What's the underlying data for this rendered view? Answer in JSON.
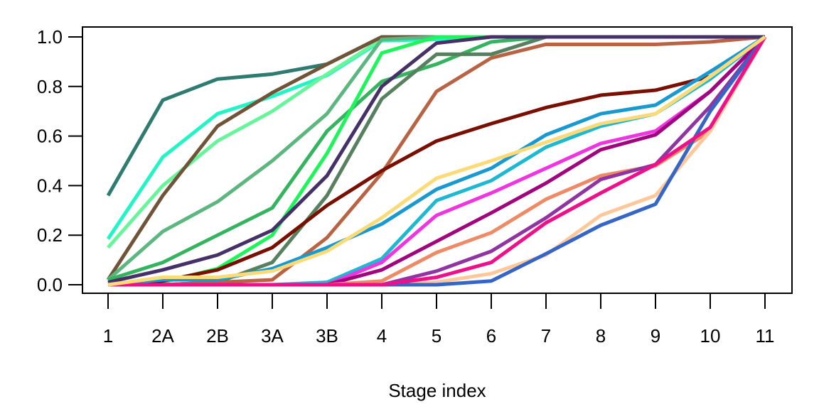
{
  "chart_data": {
    "type": "line",
    "title": "",
    "xlabel": "Stage index",
    "ylabel": "",
    "categories": [
      "1",
      "2A",
      "2B",
      "3A",
      "3B",
      "4",
      "5",
      "6",
      "7",
      "8",
      "9",
      "10",
      "11"
    ],
    "ylim": [
      0,
      1
    ],
    "yticks": [
      "0.0",
      "0.2",
      "0.4",
      "0.6",
      "0.8",
      "1.0"
    ],
    "grid": false,
    "series": [
      {
        "color": "#2e7b70",
        "values": [
          0.36,
          0.745,
          0.83,
          0.85,
          0.89,
          1,
          1,
          1,
          1,
          1,
          1,
          1,
          1
        ]
      },
      {
        "color": "#22f5c5",
        "values": [
          0.185,
          0.515,
          0.69,
          0.76,
          0.845,
          0.985,
          0.99,
          1,
          1,
          1,
          1,
          1,
          1
        ]
      },
      {
        "color": "#66f59a",
        "values": [
          0.15,
          0.4,
          0.58,
          0.7,
          0.85,
          0.99,
          1,
          1,
          1,
          1,
          1,
          1,
          1
        ]
      },
      {
        "color": "#6f5438",
        "values": [
          0.02,
          0.36,
          0.64,
          0.775,
          0.89,
          1,
          1,
          1,
          1,
          1,
          1,
          1,
          1
        ]
      },
      {
        "color": "#5bb67f",
        "values": [
          0.02,
          0.215,
          0.335,
          0.5,
          0.69,
          0.99,
          1,
          1,
          1,
          1,
          1,
          1,
          1
        ]
      },
      {
        "color": "#35b45f",
        "values": [
          0.02,
          0.09,
          0.2,
          0.31,
          0.62,
          0.82,
          0.89,
          0.98,
          1,
          1,
          1,
          1,
          1
        ]
      },
      {
        "color": "#1ef55a",
        "values": [
          0,
          0.01,
          0.065,
          0.2,
          0.53,
          0.935,
          1,
          1,
          1,
          1,
          1,
          1,
          1
        ]
      },
      {
        "color": "#56805e",
        "values": [
          0,
          0,
          0.01,
          0.09,
          0.36,
          0.75,
          0.93,
          0.93,
          1,
          1,
          1,
          1,
          1
        ]
      },
      {
        "color": "#b86444",
        "values": [
          0,
          0,
          0.01,
          0.02,
          0.19,
          0.45,
          0.78,
          0.915,
          0.97,
          0.97,
          0.97,
          0.98,
          1
        ]
      },
      {
        "color": "#453168",
        "values": [
          0.01,
          0.06,
          0.12,
          0.22,
          0.44,
          0.8,
          0.975,
          1,
          1,
          1,
          1,
          1,
          1
        ]
      },
      {
        "color": "#780f00",
        "values": [
          0,
          0.015,
          0.06,
          0.15,
          0.32,
          0.46,
          0.58,
          0.65,
          0.715,
          0.765,
          0.785,
          0.84,
          1
        ]
      },
      {
        "color": "#1fb8d2",
        "values": [
          0,
          0,
          0,
          0,
          0.01,
          0.105,
          0.34,
          0.42,
          0.555,
          0.64,
          0.69,
          0.83,
          1
        ]
      },
      {
        "color": "#1899d0",
        "values": [
          0,
          0.02,
          0.02,
          0.065,
          0.15,
          0.245,
          0.385,
          0.47,
          0.605,
          0.69,
          0.725,
          0.86,
          1
        ]
      },
      {
        "color": "#ee35e0",
        "values": [
          0,
          0,
          0,
          0,
          0,
          0.09,
          0.28,
          0.37,
          0.47,
          0.57,
          0.62,
          0.78,
          1
        ]
      },
      {
        "color": "#a0047f",
        "values": [
          0,
          0,
          0,
          0,
          0,
          0.06,
          0.175,
          0.29,
          0.41,
          0.545,
          0.605,
          0.78,
          1
        ]
      },
      {
        "color": "#ee8a66",
        "values": [
          0,
          0,
          0,
          0,
          0,
          0.015,
          0.13,
          0.21,
          0.345,
          0.44,
          0.48,
          0.62,
          1
        ]
      },
      {
        "color": "#8f34a0",
        "values": [
          0,
          0,
          0,
          0,
          0,
          0,
          0.055,
          0.135,
          0.27,
          0.425,
          0.485,
          0.72,
          1
        ]
      },
      {
        "color": "#ffc89a",
        "values": [
          0,
          0,
          0,
          0,
          0,
          0,
          0.01,
          0.045,
          0.12,
          0.28,
          0.36,
          0.62,
          1
        ]
      },
      {
        "color": "#3565c5",
        "values": [
          0,
          0,
          0,
          0,
          0,
          0,
          0,
          0.015,
          0.125,
          0.24,
          0.325,
          0.7,
          1
        ]
      },
      {
        "color": "#ee0f8a",
        "values": [
          0,
          0,
          0,
          0,
          0,
          0,
          0.03,
          0.09,
          0.25,
          0.37,
          0.485,
          0.635,
          1
        ]
      },
      {
        "color": "#fbdb77",
        "values": [
          0,
          0.03,
          0.03,
          0.055,
          0.135,
          0.27,
          0.43,
          0.5,
          0.575,
          0.65,
          0.69,
          0.84,
          1
        ]
      }
    ]
  }
}
